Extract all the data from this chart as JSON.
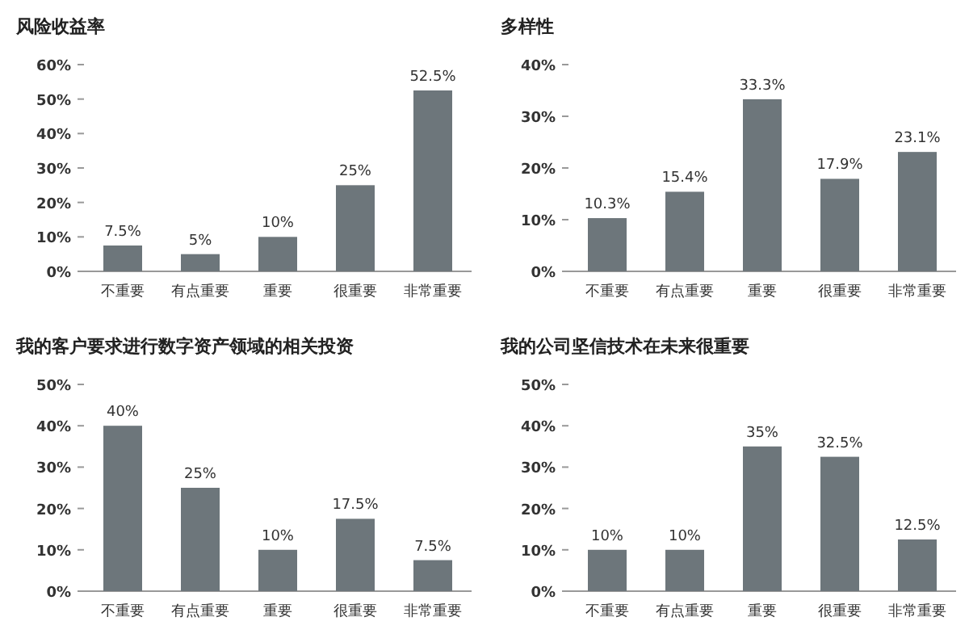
{
  "chart_data": [
    {
      "type": "bar",
      "title": "风险收益率",
      "categories": [
        "不重要",
        "有点重要",
        "重要",
        "很重要",
        "非常重要"
      ],
      "values": [
        7.5,
        5,
        10,
        25,
        52.5
      ],
      "value_labels": [
        "7.5%",
        "5%",
        "10%",
        "25%",
        "52.5%"
      ],
      "color": "#6d767b",
      "ylim": [
        0,
        60
      ],
      "yticks": [
        {
          "value": 0,
          "label": "0%"
        },
        {
          "value": 10,
          "label": "10%"
        },
        {
          "value": 20,
          "label": "20%"
        },
        {
          "value": 30,
          "label": "30%"
        },
        {
          "value": 40,
          "label": "40%"
        },
        {
          "value": 50,
          "label": "50%"
        },
        {
          "value": 60,
          "label": "60%"
        }
      ]
    },
    {
      "type": "bar",
      "title": "多样性",
      "categories": [
        "不重要",
        "有点重要",
        "重要",
        "很重要",
        "非常重要"
      ],
      "values": [
        10.3,
        15.4,
        33.3,
        17.9,
        23.1
      ],
      "value_labels": [
        "10.3%",
        "15.4%",
        "33.3%",
        "17.9%",
        "23.1%"
      ],
      "color": "#6d767b",
      "ylim": [
        0,
        40
      ],
      "yticks": [
        {
          "value": 0,
          "label": "0%"
        },
        {
          "value": 10,
          "label": "10%"
        },
        {
          "value": 20,
          "label": "20%"
        },
        {
          "value": 30,
          "label": "30%"
        },
        {
          "value": 40,
          "label": "40%"
        }
      ]
    },
    {
      "type": "bar",
      "title": "我的客户要求进行数字资产领域的相关投资",
      "categories": [
        "不重要",
        "有点重要",
        "重要",
        "很重要",
        "非常重要"
      ],
      "values": [
        40,
        25,
        10,
        17.5,
        7.5
      ],
      "value_labels": [
        "40%",
        "25%",
        "10%",
        "17.5%",
        "7.5%"
      ],
      "color": "#6d767b",
      "ylim": [
        0,
        50
      ],
      "yticks": [
        {
          "value": 0,
          "label": "0%"
        },
        {
          "value": 10,
          "label": "10%"
        },
        {
          "value": 20,
          "label": "20%"
        },
        {
          "value": 30,
          "label": "30%"
        },
        {
          "value": 40,
          "label": "40%"
        },
        {
          "value": 50,
          "label": "50%"
        }
      ]
    },
    {
      "type": "bar",
      "title": "我的公司坚信技术在未来很重要",
      "categories": [
        "不重要",
        "有点重要",
        "重要",
        "很重要",
        "非常重要"
      ],
      "values": [
        10,
        10,
        35,
        32.5,
        12.5
      ],
      "value_labels": [
        "10%",
        "10%",
        "35%",
        "32.5%",
        "12.5%"
      ],
      "color": "#6d767b",
      "ylim": [
        0,
        50
      ],
      "yticks": [
        {
          "value": 0,
          "label": "0%"
        },
        {
          "value": 10,
          "label": "10%"
        },
        {
          "value": 20,
          "label": "20%"
        },
        {
          "value": 30,
          "label": "30%"
        },
        {
          "value": 40,
          "label": "40%"
        },
        {
          "value": 50,
          "label": "50%"
        }
      ]
    }
  ]
}
